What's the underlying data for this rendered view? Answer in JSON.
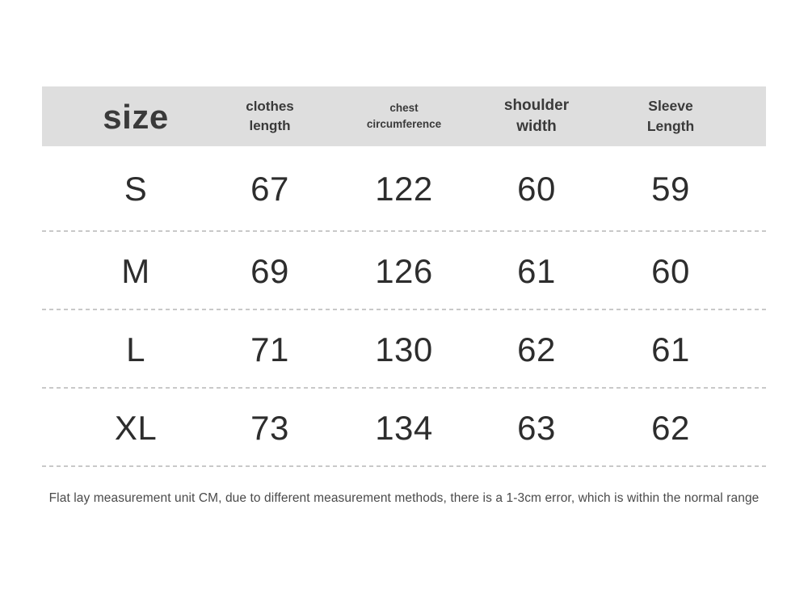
{
  "header": {
    "size_label": "size",
    "columns": [
      {
        "id": "clothes-length",
        "line1": "clothes",
        "line2": "length"
      },
      {
        "id": "chest-circumference",
        "line1": "chest",
        "line2": "circumference"
      },
      {
        "id": "shoulder-width",
        "line1": "shoulder",
        "line2": "width"
      },
      {
        "id": "sleeve-length",
        "line1": "Sleeve",
        "line2": "Length"
      }
    ]
  },
  "rows": [
    {
      "size": "S",
      "clothes_length": "67",
      "chest_circumference": "122",
      "shoulder_width": "60",
      "sleeve_length": "59"
    },
    {
      "size": "M",
      "clothes_length": "69",
      "chest_circumference": "126",
      "shoulder_width": "61",
      "sleeve_length": "60"
    },
    {
      "size": "L",
      "clothes_length": "71",
      "chest_circumference": "130",
      "shoulder_width": "62",
      "sleeve_length": "61"
    },
    {
      "size": "XL",
      "clothes_length": "73",
      "chest_circumference": "134",
      "shoulder_width": "63",
      "sleeve_length": "62"
    }
  ],
  "footnote": "Flat lay measurement unit CM, due to different measurement methods, there is a 1-3cm error, which is within the normal range",
  "colors": {
    "page_bg": "#ffffff",
    "header_bg": "#dedede",
    "heading_text": "#3a3a3a",
    "value_text": "#2d2d2d",
    "divider": "#c9c9c9",
    "footnote_text": "#4a4a4a"
  },
  "chart_data": {
    "type": "table",
    "title": "size",
    "columns": [
      "size",
      "clothes length",
      "chest circumference",
      "shoulder width",
      "Sleeve Length"
    ],
    "rows": [
      [
        "S",
        67,
        122,
        60,
        59
      ],
      [
        "M",
        69,
        126,
        61,
        60
      ],
      [
        "L",
        71,
        130,
        62,
        61
      ],
      [
        "XL",
        73,
        134,
        63,
        62
      ]
    ],
    "unit": "CM",
    "footnote": "Flat lay measurement unit CM, due to different measurement methods, there is a 1-3cm error, which is within the normal range"
  }
}
